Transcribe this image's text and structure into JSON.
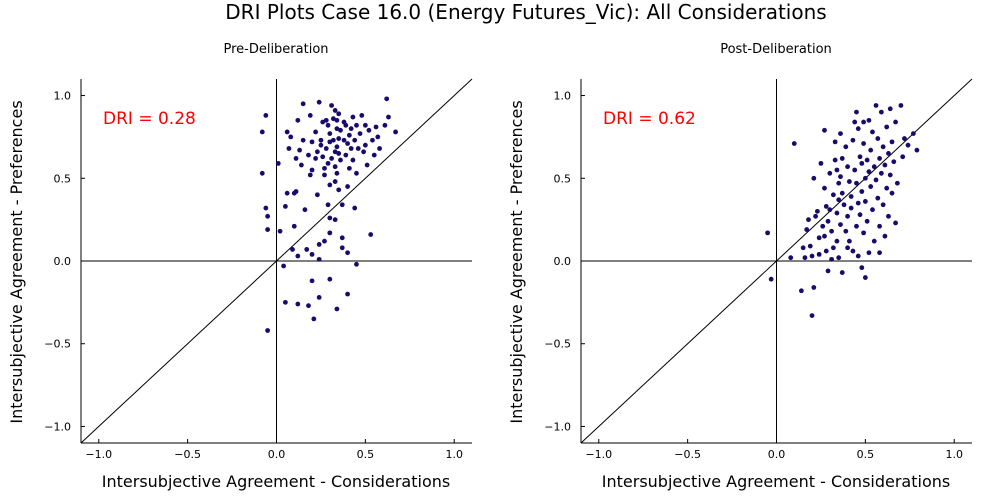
{
  "title": "DRI Plots Case 16.0 (Energy Futures_Vic): All Considerations",
  "colors": {
    "point": "#1b0a6b",
    "dri_text": "#ff0000",
    "axes": "#000000"
  },
  "chart_data": [
    {
      "type": "scatter",
      "title": "Pre-Deliberation",
      "xlabel": "Intersubjective Agreement - Considerations",
      "ylabel": "Intersubjective Agreement - Preferences",
      "xlim": [
        -1.1,
        1.1
      ],
      "ylim": [
        -1.1,
        1.1
      ],
      "xticks": [
        -1.0,
        -0.5,
        0.0,
        0.5,
        1.0
      ],
      "yticks": [
        -1.0,
        -0.5,
        0.0,
        0.5,
        1.0
      ],
      "xtick_labels": [
        "−1.0",
        "−0.5",
        "0.0",
        "0.5",
        "1.0"
      ],
      "ytick_labels": [
        "−1.0",
        "−0.5",
        "0.0",
        "0.5",
        "1.0"
      ],
      "annotation": "DRI = 0.28",
      "reference_lines": [
        "y = x",
        "x = 0",
        "y = 0"
      ],
      "points": [
        [
          -0.08,
          0.78
        ],
        [
          -0.06,
          0.88
        ],
        [
          -0.08,
          0.53
        ],
        [
          -0.06,
          0.32
        ],
        [
          -0.05,
          0.27
        ],
        [
          -0.05,
          0.19
        ],
        [
          -0.05,
          -0.42
        ],
        [
          0.01,
          0.59
        ],
        [
          0.04,
          -0.03
        ],
        [
          0.05,
          0.33
        ],
        [
          0.06,
          0.41
        ],
        [
          0.06,
          0.78
        ],
        [
          0.07,
          0.68
        ],
        [
          0.08,
          0.75
        ],
        [
          0.09,
          0.07
        ],
        [
          0.1,
          0.41
        ],
        [
          0.1,
          0.21
        ],
        [
          0.11,
          0.42
        ],
        [
          0.11,
          0.62
        ],
        [
          0.12,
          0.85
        ],
        [
          0.12,
          0.03
        ],
        [
          0.12,
          -0.26
        ],
        [
          0.13,
          0.67
        ],
        [
          0.14,
          0.58
        ],
        [
          0.15,
          0.95
        ],
        [
          0.15,
          0.73
        ],
        [
          0.16,
          0.31
        ],
        [
          0.17,
          0.07
        ],
        [
          0.18,
          0.64
        ],
        [
          0.18,
          -0.27
        ],
        [
          0.19,
          0.88
        ],
        [
          0.19,
          0.52
        ],
        [
          0.2,
          0.72
        ],
        [
          0.2,
          0.55
        ],
        [
          0.2,
          0.04
        ],
        [
          0.2,
          -0.12
        ],
        [
          0.21,
          -0.35
        ],
        [
          0.22,
          0.62
        ],
        [
          0.22,
          0.78
        ],
        [
          0.23,
          0.66
        ],
        [
          0.23,
          0.4
        ],
        [
          0.24,
          0.96
        ],
        [
          0.24,
          0.01
        ],
        [
          0.24,
          -0.22
        ],
        [
          0.25,
          0.73
        ],
        [
          0.25,
          0.7
        ],
        [
          0.26,
          0.84
        ],
        [
          0.26,
          0.63
        ],
        [
          0.27,
          0.56
        ],
        [
          0.27,
          0.52
        ],
        [
          0.27,
          0.12
        ],
        [
          0.28,
          0.85
        ],
        [
          0.28,
          0.68
        ],
        [
          0.29,
          0.82
        ],
        [
          0.29,
          0.59
        ],
        [
          0.29,
          0.34
        ],
        [
          0.3,
          0.77
        ],
        [
          0.3,
          0.72
        ],
        [
          0.3,
          0.46
        ],
        [
          0.3,
          0.26
        ],
        [
          0.3,
          0.17
        ],
        [
          0.3,
          -0.11
        ],
        [
          0.31,
          0.94
        ],
        [
          0.31,
          0.62
        ],
        [
          0.32,
          0.86
        ],
        [
          0.32,
          0.73
        ],
        [
          0.33,
          0.91
        ],
        [
          0.33,
          0.66
        ],
        [
          0.33,
          0.57
        ],
        [
          0.33,
          0.48
        ],
        [
          0.33,
          0.25
        ],
        [
          0.34,
          0.85
        ],
        [
          0.34,
          0.8
        ],
        [
          0.34,
          0.69
        ],
        [
          0.34,
          0.53
        ],
        [
          0.34,
          -0.29
        ],
        [
          0.35,
          0.89
        ],
        [
          0.35,
          0.74
        ],
        [
          0.35,
          0.65
        ],
        [
          0.35,
          0.43
        ],
        [
          0.36,
          0.79
        ],
        [
          0.36,
          0.61
        ],
        [
          0.37,
          0.34
        ],
        [
          0.37,
          0.08
        ],
        [
          0.38,
          0.84
        ],
        [
          0.38,
          0.73
        ],
        [
          0.39,
          0.82
        ],
        [
          0.39,
          0.64
        ],
        [
          0.4,
          0.71
        ],
        [
          0.4,
          0.45
        ],
        [
          0.4,
          0.05
        ],
        [
          0.4,
          -0.2
        ],
        [
          0.41,
          0.76
        ],
        [
          0.41,
          0.56
        ],
        [
          0.42,
          0.8
        ],
        [
          0.42,
          0.68
        ],
        [
          0.43,
          0.87
        ],
        [
          0.43,
          0.61
        ],
        [
          0.44,
          0.73
        ],
        [
          0.44,
          0.32
        ],
        [
          0.45,
          0.82
        ],
        [
          0.45,
          0.53
        ],
        [
          0.46,
          0.68
        ],
        [
          0.47,
          0.77
        ],
        [
          0.48,
          0.88
        ],
        [
          0.49,
          0.66
        ],
        [
          0.5,
          0.82
        ],
        [
          0.5,
          0.7
        ],
        [
          0.51,
          0.58
        ],
        [
          0.52,
          0.79
        ],
        [
          0.53,
          0.16
        ],
        [
          0.54,
          0.73
        ],
        [
          0.55,
          0.64
        ],
        [
          0.56,
          0.81
        ],
        [
          0.57,
          0.75
        ],
        [
          0.58,
          0.68
        ],
        [
          0.61,
          0.82
        ],
        [
          0.62,
          0.98
        ],
        [
          0.63,
          0.87
        ],
        [
          0.67,
          0.78
        ],
        [
          0.05,
          -0.25
        ],
        [
          0.45,
          -0.02
        ],
        [
          0.24,
          0.1
        ],
        [
          0.02,
          0.18
        ],
        [
          0.37,
          0.14
        ]
      ]
    },
    {
      "type": "scatter",
      "title": "Post-Deliberation",
      "xlabel": "Intersubjective Agreement - Considerations",
      "ylabel": "Intersubjective Agreement - Preferences",
      "xlim": [
        -1.1,
        1.1
      ],
      "ylim": [
        -1.1,
        1.1
      ],
      "xticks": [
        -1.0,
        -0.5,
        0.0,
        0.5,
        1.0
      ],
      "yticks": [
        -1.0,
        -0.5,
        0.0,
        0.5,
        1.0
      ],
      "xtick_labels": [
        "−1.0",
        "−0.5",
        "0.0",
        "0.5",
        "1.0"
      ],
      "ytick_labels": [
        "−1.0",
        "−0.5",
        "0.0",
        "0.5",
        "1.0"
      ],
      "annotation": "DRI = 0.62",
      "reference_lines": [
        "y = x",
        "x = 0",
        "y = 0"
      ],
      "points": [
        [
          -0.05,
          0.17
        ],
        [
          -0.03,
          -0.11
        ],
        [
          0.08,
          0.02
        ],
        [
          0.1,
          0.71
        ],
        [
          0.14,
          -0.18
        ],
        [
          0.15,
          0.08
        ],
        [
          0.16,
          0.02
        ],
        [
          0.17,
          0.19
        ],
        [
          0.18,
          0.25
        ],
        [
          0.19,
          0.09
        ],
        [
          0.2,
          0.03
        ],
        [
          0.2,
          -0.33
        ],
        [
          0.21,
          0.5
        ],
        [
          0.21,
          -0.16
        ],
        [
          0.22,
          0.27
        ],
        [
          0.23,
          0.3
        ],
        [
          0.24,
          0.14
        ],
        [
          0.24,
          0.04
        ],
        [
          0.25,
          0.59
        ],
        [
          0.26,
          0.21
        ],
        [
          0.27,
          0.79
        ],
        [
          0.27,
          0.44
        ],
        [
          0.27,
          0.15
        ],
        [
          0.28,
          0.33
        ],
        [
          0.28,
          0.06
        ],
        [
          0.29,
          0.24
        ],
        [
          0.29,
          -0.06
        ],
        [
          0.3,
          0.53
        ],
        [
          0.3,
          0.31
        ],
        [
          0.31,
          0.18
        ],
        [
          0.31,
          0.01
        ],
        [
          0.32,
          0.4
        ],
        [
          0.32,
          0.08
        ],
        [
          0.33,
          0.72
        ],
        [
          0.33,
          0.61
        ],
        [
          0.34,
          0.55
        ],
        [
          0.34,
          0.29
        ],
        [
          0.34,
          0.12
        ],
        [
          0.35,
          0.47
        ],
        [
          0.35,
          0.37
        ],
        [
          0.35,
          0.02
        ],
        [
          0.36,
          0.77
        ],
        [
          0.36,
          0.51
        ],
        [
          0.36,
          0.22
        ],
        [
          0.37,
          0.62
        ],
        [
          0.37,
          0.41
        ],
        [
          0.37,
          -0.07
        ],
        [
          0.38,
          0.34
        ],
        [
          0.39,
          0.18
        ],
        [
          0.39,
          0.69
        ],
        [
          0.4,
          0.57
        ],
        [
          0.4,
          0.27
        ],
        [
          0.41,
          0.48
        ],
        [
          0.41,
          0.12
        ],
        [
          0.42,
          0.39
        ],
        [
          0.42,
          0.32
        ],
        [
          0.43,
          0.73
        ],
        [
          0.43,
          0.06
        ],
        [
          0.44,
          0.84
        ],
        [
          0.44,
          0.55
        ],
        [
          0.45,
          0.47
        ],
        [
          0.45,
          0.21
        ],
        [
          0.46,
          0.8
        ],
        [
          0.46,
          0.35
        ],
        [
          0.46,
          0.03
        ],
        [
          0.47,
          0.63
        ],
        [
          0.47,
          0.28
        ],
        [
          0.48,
          0.59
        ],
        [
          0.48,
          0.42
        ],
        [
          0.48,
          -0.04
        ],
        [
          0.49,
          0.84
        ],
        [
          0.49,
          0.71
        ],
        [
          0.49,
          0.17
        ],
        [
          0.5,
          0.5
        ],
        [
          0.5,
          0.36
        ],
        [
          0.5,
          -0.1
        ],
        [
          0.51,
          0.61
        ],
        [
          0.51,
          0.24
        ],
        [
          0.52,
          0.85
        ],
        [
          0.52,
          0.54
        ],
        [
          0.52,
          0.05
        ],
        [
          0.53,
          0.67
        ],
        [
          0.53,
          0.45
        ],
        [
          0.54,
          0.78
        ],
        [
          0.54,
          0.31
        ],
        [
          0.55,
          0.57
        ],
        [
          0.55,
          0.12
        ],
        [
          0.56,
          0.94
        ],
        [
          0.56,
          0.49
        ],
        [
          0.57,
          0.74
        ],
        [
          0.57,
          0.38
        ],
        [
          0.58,
          0.62
        ],
        [
          0.58,
          0.21
        ],
        [
          0.59,
          0.53
        ],
        [
          0.59,
          0.9
        ],
        [
          0.6,
          0.69
        ],
        [
          0.6,
          0.34
        ],
        [
          0.61,
          0.58
        ],
        [
          0.61,
          0.15
        ],
        [
          0.62,
          0.81
        ],
        [
          0.62,
          0.44
        ],
        [
          0.63,
          0.65
        ],
        [
          0.63,
          0.27
        ],
        [
          0.64,
          0.92
        ],
        [
          0.64,
          0.52
        ],
        [
          0.65,
          0.72
        ],
        [
          0.65,
          0.41
        ],
        [
          0.66,
          0.6
        ],
        [
          0.67,
          0.84
        ],
        [
          0.67,
          0.23
        ],
        [
          0.68,
          0.47
        ],
        [
          0.7,
          0.94
        ],
        [
          0.71,
          0.63
        ],
        [
          0.72,
          0.74
        ],
        [
          0.74,
          0.7
        ],
        [
          0.77,
          0.77
        ],
        [
          0.79,
          0.67
        ],
        [
          0.58,
          0.05
        ],
        [
          0.45,
          0.9
        ],
        [
          0.4,
          0.08
        ]
      ]
    }
  ]
}
